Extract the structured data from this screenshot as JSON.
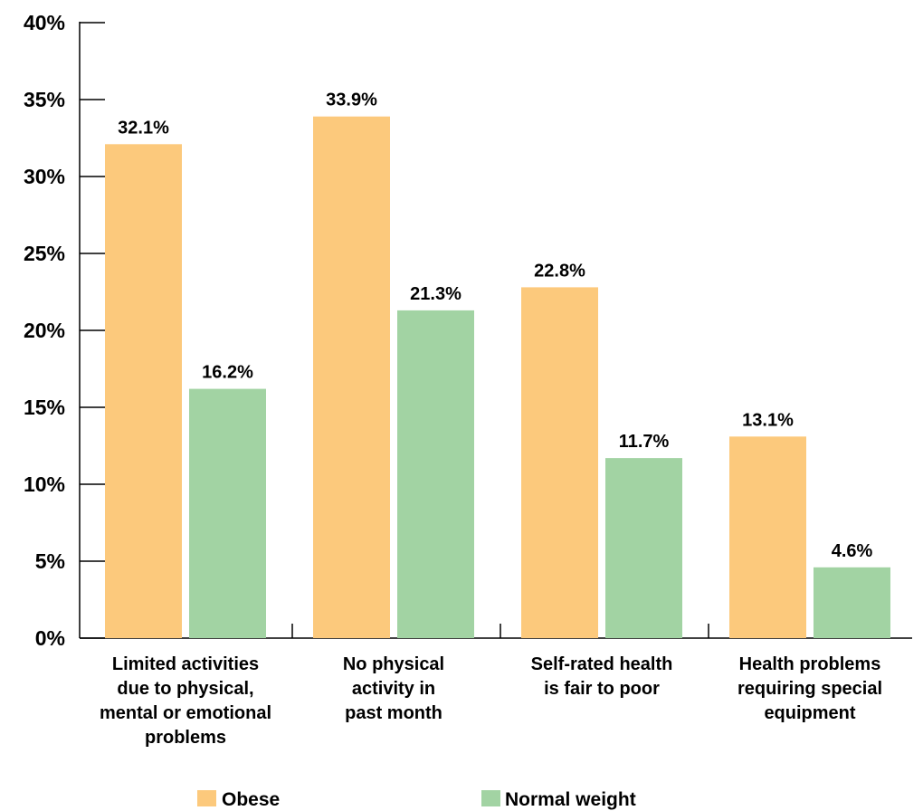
{
  "chart_data": {
    "type": "bar",
    "title": "",
    "xlabel": "",
    "ylabel": "",
    "ylim": [
      0,
      40
    ],
    "yticks": [
      0,
      5,
      10,
      15,
      20,
      25,
      30,
      35,
      40
    ],
    "ytick_labels": [
      "0%",
      "5%",
      "10%",
      "15%",
      "20%",
      "25%",
      "30%",
      "35%",
      "40%"
    ],
    "categories": [
      [
        "Limited activities",
        "due to physical,",
        "mental or emotional",
        "problems"
      ],
      [
        "No physical",
        "activity in",
        "past month"
      ],
      [
        "Self-rated health",
        "is fair to poor"
      ],
      [
        "Health problems",
        "requiring special",
        "equipment"
      ]
    ],
    "series": [
      {
        "name": "Obese",
        "color": "#fcc97c",
        "values": [
          32.1,
          33.9,
          22.8,
          13.1
        ],
        "labels": [
          "32.1%",
          "33.9%",
          "22.8%",
          "13.1%"
        ]
      },
      {
        "name": "Normal weight",
        "color": "#a2d3a3",
        "values": [
          16.2,
          21.3,
          11.7,
          4.6
        ],
        "labels": [
          "16.2%",
          "21.3%",
          "11.7%",
          "4.6%"
        ]
      }
    ],
    "legend_position": "bottom",
    "grid": false
  }
}
